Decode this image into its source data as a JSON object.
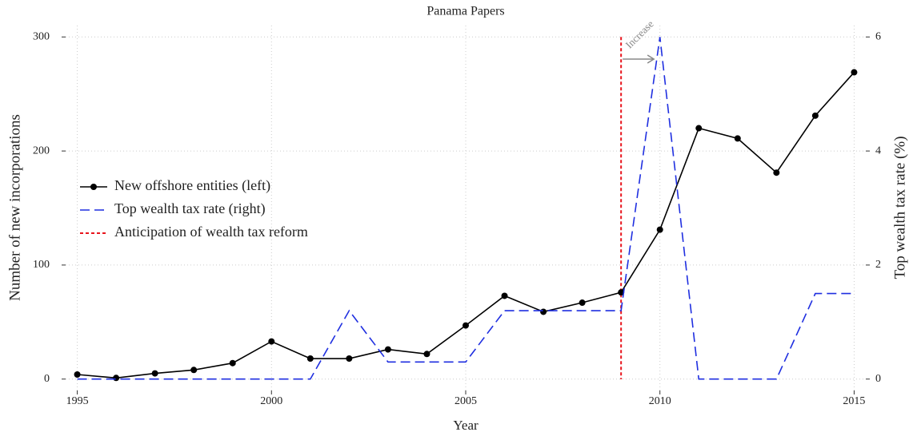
{
  "chart_data": {
    "type": "line",
    "title": "Panama Papers",
    "xlabel": "Year",
    "ylabel": "Number of new incorporations",
    "y2label": "Top wealth tax rate (%)",
    "x": [
      1995,
      1996,
      1997,
      1998,
      1999,
      2000,
      2001,
      2002,
      2003,
      2004,
      2005,
      2006,
      2007,
      2008,
      2009,
      2010,
      2011,
      2012,
      2013,
      2014,
      2015
    ],
    "series": [
      {
        "name": "New offshore entities (left)",
        "color": "#000000",
        "style": "solid-markers",
        "values": [
          4,
          1,
          5,
          8,
          14,
          33,
          18,
          18,
          26,
          22,
          47,
          73,
          59,
          67,
          76,
          131,
          220,
          211,
          181,
          231,
          269
        ]
      },
      {
        "name": "Top wealth tax rate (right)",
        "color": "#1f2fe0",
        "style": "dashed",
        "axis": "y2",
        "values": [
          0,
          0,
          0,
          0,
          0,
          0,
          0,
          1.2,
          0.3,
          0.3,
          0.3,
          1.2,
          1.2,
          1.2,
          1.2,
          6,
          0,
          0,
          0,
          1.5,
          1.5
        ]
      }
    ],
    "vline": {
      "x": 2009,
      "color": "#e8141c",
      "label": "Anticipation of wealth tax reform",
      "annotation": "Increase"
    },
    "xlim": [
      1994.7,
      2015.3
    ],
    "xticks": [
      1995,
      2000,
      2005,
      2010,
      2015
    ],
    "ylim": [
      -10,
      310
    ],
    "yticks": [
      0,
      100,
      200,
      300
    ],
    "y2lim": [
      -0.2,
      6.2
    ],
    "y2ticks": [
      0,
      2,
      4,
      6
    ],
    "grid": true,
    "legend": "left"
  }
}
